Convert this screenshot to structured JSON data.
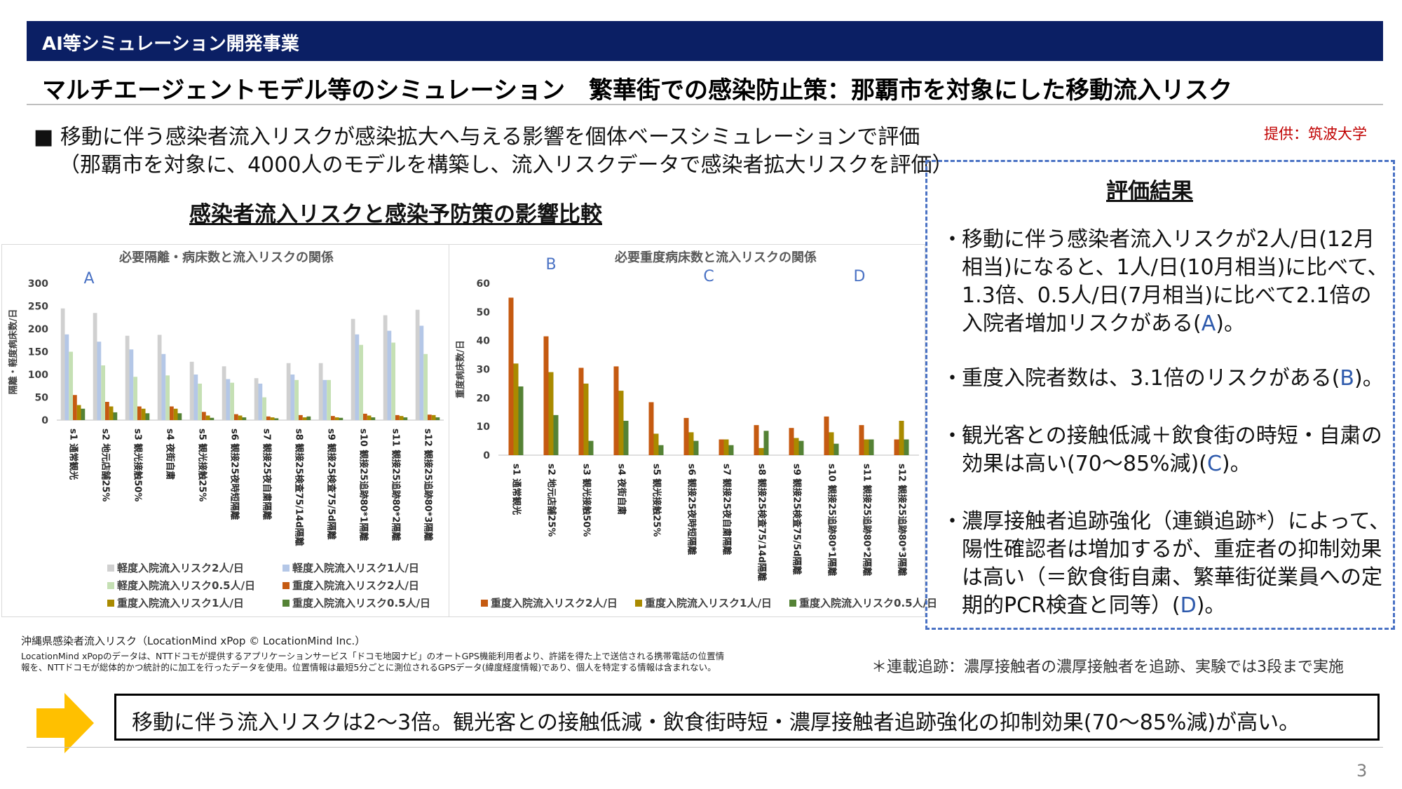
{
  "header": {
    "category": "AI等シミュレーション開発事業",
    "title": "マルチエージェントモデル等のシミュレーション　繁華街での感染防止策：那覇市を対象にした移動流入リスク"
  },
  "intro": {
    "bullet": "■ 移動に伴う感染者流入リスクが感染拡大へ与える影響を個体ベースシミュレーションで評価",
    "sub": "（那覇市を対象に、4000人のモデルを構築し、流入リスクデータで感染者拡大リスクを評価）",
    "credit": "提供：筑波大学"
  },
  "comparison_title": "感染者流入リスクと感染予防策の影響比較",
  "evaluation": {
    "heading": "評価結果",
    "items": [
      {
        "pre": "移動に伴う感染者流入リスクが2人/日(12月相当)になると、1人/日(10月相当)に比べて、1.3倍、0.5人/日(7月相当)に比べて2.1倍の入院者増加リスクがある(",
        "mark": "A",
        "post": ")。"
      },
      {
        "pre": "重度入院者数は、3.1倍のリスクがある(",
        "mark": "B",
        "post": ")。"
      },
      {
        "pre": "観光客との接触低減＋飲食街の時短・自粛の効果は高い(70～85%減)(",
        "mark": "C",
        "post": ")。"
      },
      {
        "pre": "濃厚接触者追跡強化（連鎖追跡*）によって、陽性確認者は増加するが、重症者の抑制効果は高い（＝飲食街自粛、繁華街従業員への定期的PCR検査と同等）(",
        "mark": "D",
        "post": ")。"
      }
    ]
  },
  "chart_data": [
    {
      "type": "bar",
      "title": "必要隔離・病床数と流入リスクの関係",
      "ylabel": "隔離・軽度病床数/日",
      "ylim": [
        0,
        300
      ],
      "yticks": [
        0,
        50,
        100,
        150,
        200,
        250,
        300
      ],
      "categories": [
        "s1 通常観光",
        "s2 地元店舗25%",
        "s3 観光接触50%",
        "s4 夜街自粛",
        "s5 観光接触25%",
        "s6 観接25夜時短隔離",
        "s7 観接25夜自粛隔離",
        "s8 観接25検査75/14d隔離",
        "s9 観接25検査75/5d隔離",
        "s10 観接25追跡80*1隔離",
        "s11 観接25追跡80*2隔離",
        "s12 観接25追跡80*3隔離"
      ],
      "series": [
        {
          "name": "軽度入院流入リスク2人/日",
          "color": "#d0d0d0",
          "values": [
            245,
            235,
            185,
            187,
            128,
            118,
            92,
            125,
            125,
            222,
            230,
            242
          ]
        },
        {
          "name": "軽度入院流入リスク1人/日",
          "color": "#b4c7e7",
          "values": [
            188,
            172,
            155,
            145,
            100,
            90,
            80,
            100,
            88,
            188,
            196,
            207
          ]
        },
        {
          "name": "軽度入院流入リスク0.5人/日",
          "color": "#c5e0b4",
          "values": [
            150,
            120,
            95,
            98,
            80,
            82,
            50,
            88,
            88,
            165,
            170,
            145
          ]
        },
        {
          "name": "重度入院流入リスク2人/日",
          "color": "#c55a11",
          "values": [
            55,
            40,
            30,
            30,
            18,
            13,
            8,
            11,
            9,
            14,
            11,
            12
          ]
        },
        {
          "name": "重度入院流入リスク1人/日",
          "color": "#a98a00",
          "values": [
            33,
            30,
            25,
            25,
            10,
            10,
            6,
            6,
            6,
            10,
            9,
            11
          ]
        },
        {
          "name": "重度入院流入リスク0.5人/日",
          "color": "#548235",
          "values": [
            25,
            17,
            15,
            15,
            5,
            6,
            4,
            8,
            5,
            6,
            6,
            6
          ]
        }
      ],
      "annotations": [
        "A"
      ]
    },
    {
      "type": "bar",
      "title": "必要重度病床数と流入リスクの関係",
      "ylabel": "重度病床数/日",
      "ylim": [
        0,
        60
      ],
      "yticks": [
        0,
        10,
        20,
        30,
        40,
        50,
        60
      ],
      "categories": [
        "s1 通常観光",
        "s2 地元店舗25%",
        "s3 観光接触50%",
        "s4 夜街自粛",
        "s5 観光接触25%",
        "s6 観接25夜時短隔離",
        "s7 観接25夜自粛隔離",
        "s8 観接25検査75/14d隔離",
        "s9 観接25検査75/5d隔離",
        "s10 観接25追跡80*1隔離",
        "s11 観接25追跡80*2隔離",
        "s12 観接25追跡80*3隔離"
      ],
      "series": [
        {
          "name": "重度入院流入リスク2人/日",
          "color": "#c55a11",
          "values": [
            55,
            41.5,
            30.5,
            31,
            18.5,
            13,
            5.5,
            10.5,
            9.5,
            13.5,
            10.5,
            5.5
          ]
        },
        {
          "name": "重度入院流入リスク1人/日",
          "color": "#a98a00",
          "values": [
            32,
            29,
            25,
            22.5,
            7.5,
            8,
            5.5,
            2.5,
            6,
            8,
            5.5,
            12
          ]
        },
        {
          "name": "重度入院流入リスク0.5人/日",
          "color": "#548235",
          "values": [
            24,
            14,
            5,
            12,
            3.5,
            5,
            3.5,
            8.5,
            5,
            4,
            5.5,
            5.5
          ]
        }
      ],
      "annotations": [
        "B",
        "C",
        "D"
      ]
    }
  ],
  "source": {
    "line1": "沖縄県感染者流入リスク（LocationMind xPop © LocationMind Inc.）",
    "line2": "LocationMind xPopのデータは、NTTドコモが提供するアプリケーションサービス「ドコモ地図ナビ」のオートGPS機能利用者より、許諾を得た上で送信される携帯電話の位置情",
    "line3": "報を、NTTドコモが総体的かつ統計的に加工を行ったデータを使用。位置情報は最短5分ごとに測位されるGPSデータ(緯度経度情報)であり、個人を特定する情報は含まれない。"
  },
  "footnote": "＊連載追跡：濃厚接触者の濃厚接触者を追跡、実験では3段まで実施",
  "conclusion": "移動に伴う流入リスクは2～3倍。観光客との接触低減・飲食街時短・濃厚接触者追跡強化の抑制効果(70～85%減)が高い。",
  "page_number": "3",
  "colors": {
    "header_bg": "#0b1f64",
    "accent_arrow": "#ffc000",
    "credit": "#c00000",
    "box_border": "#4a72c4"
  }
}
